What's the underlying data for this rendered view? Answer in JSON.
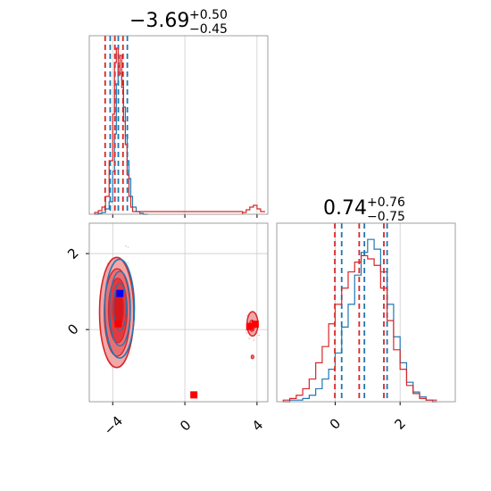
{
  "chart_data": [
    {
      "panel": "marginal-x",
      "type": "histogram",
      "title": {
        "main": "−3.69",
        "sup": "+0.50",
        "sub": "−0.45"
      },
      "xlim": [
        -5.3,
        4.6
      ],
      "series": [
        {
          "color": "#1f77b4",
          "bins": [
            [
              -5.0,
              0
            ],
            [
              -4.8,
              1
            ],
            [
              -4.6,
              2
            ],
            [
              -4.4,
              6
            ],
            [
              -4.2,
              14
            ],
            [
              -4.0,
              48
            ],
            [
              -3.9,
              90
            ],
            [
              -3.8,
              146
            ],
            [
              -3.7,
              166
            ],
            [
              -3.6,
              158
            ],
            [
              -3.5,
              150
            ],
            [
              -3.4,
              120
            ],
            [
              -3.3,
              88
            ],
            [
              -3.2,
              60
            ],
            [
              -3.1,
              40
            ],
            [
              -3.0,
              20
            ],
            [
              -2.9,
              8
            ],
            [
              -2.7,
              3
            ],
            [
              -2.5,
              1
            ],
            [
              -2.3,
              0
            ]
          ],
          "quantiles": [
            -4.14,
            -3.69,
            -3.19
          ]
        },
        {
          "color": "#d62728",
          "bins": [
            [
              -5.0,
              2
            ],
            [
              -4.8,
              4
            ],
            [
              -4.6,
              8
            ],
            [
              -4.4,
              20
            ],
            [
              -4.2,
              60
            ],
            [
              -4.0,
              112
            ],
            [
              -3.9,
              170
            ],
            [
              -3.8,
              186
            ],
            [
              -3.7,
              156
            ],
            [
              -3.6,
              178
            ],
            [
              -3.5,
              142
            ],
            [
              -3.4,
              104
            ],
            [
              -3.3,
              78
            ],
            [
              -3.2,
              44
            ],
            [
              -3.1,
              20
            ],
            [
              -3.0,
              8
            ],
            [
              -2.9,
              3
            ],
            [
              3.2,
              2
            ],
            [
              3.4,
              5
            ],
            [
              3.6,
              8
            ],
            [
              3.8,
              10
            ],
            [
              4.0,
              6
            ],
            [
              4.2,
              3
            ]
          ],
          "quantiles": [
            -4.42,
            -3.88,
            -3.43
          ]
        }
      ],
      "ylim": [
        0,
        200
      ]
    },
    {
      "panel": "joint",
      "type": "contour",
      "xlim": [
        -5.3,
        4.6
      ],
      "ylim": [
        -1.9,
        2.8
      ],
      "xticks": [
        "−4",
        "0",
        "4"
      ],
      "yticks": [
        "2",
        "0"
      ],
      "xtick_values": [
        -4,
        0,
        4
      ],
      "ytick_values": [
        2,
        0
      ],
      "grid": true,
      "markers": [
        {
          "color": "#0000ff",
          "x": -3.6,
          "y": 0.95
        },
        {
          "color": "#ff0000",
          "x": -3.7,
          "y": 0.15
        },
        {
          "color": "#ff0000",
          "x": 0.5,
          "y": -1.72
        },
        {
          "color": "#ff0000",
          "x": 3.6,
          "y": 0.08
        },
        {
          "color": "#ff0000",
          "x": 3.9,
          "y": 0.14
        }
      ]
    },
    {
      "panel": "marginal-y",
      "type": "histogram",
      "title": {
        "main": "0.74",
        "sup": "+0.76",
        "sub": "−0.75"
      },
      "xlim": [
        -1.8,
        3.7
      ],
      "xticks": [
        "0",
        "2"
      ],
      "xtick_values": [
        0,
        2
      ],
      "series": [
        {
          "color": "#1f77b4",
          "bins": [
            [
              -1.6,
              0
            ],
            [
              -1.4,
              1
            ],
            [
              -1.2,
              1
            ],
            [
              -1.0,
              2
            ],
            [
              -0.8,
              4
            ],
            [
              -0.6,
              8
            ],
            [
              -0.4,
              14
            ],
            [
              -0.2,
              20
            ],
            [
              0.0,
              30
            ],
            [
              0.2,
              46
            ],
            [
              0.4,
              60
            ],
            [
              0.6,
              78
            ],
            [
              0.8,
              92
            ],
            [
              1.0,
              100
            ],
            [
              1.2,
              94
            ],
            [
              1.4,
              80
            ],
            [
              1.6,
              60
            ],
            [
              1.8,
              40
            ],
            [
              2.0,
              24
            ],
            [
              2.2,
              12
            ],
            [
              2.4,
              6
            ],
            [
              2.6,
              3
            ],
            [
              2.8,
              1
            ],
            [
              3.0,
              0
            ]
          ],
          "quantiles": [
            0.2,
            0.9,
            1.6
          ]
        },
        {
          "color": "#d62728",
          "bins": [
            [
              -1.6,
              1
            ],
            [
              -1.4,
              2
            ],
            [
              -1.2,
              4
            ],
            [
              -1.0,
              8
            ],
            [
              -0.8,
              14
            ],
            [
              -0.6,
              24
            ],
            [
              -0.4,
              34
            ],
            [
              -0.2,
              48
            ],
            [
              0.0,
              60
            ],
            [
              0.2,
              70
            ],
            [
              0.4,
              80
            ],
            [
              0.6,
              86
            ],
            [
              0.8,
              90
            ],
            [
              1.0,
              88
            ],
            [
              1.2,
              84
            ],
            [
              1.4,
              70
            ],
            [
              1.6,
              50
            ],
            [
              1.8,
              32
            ],
            [
              2.0,
              20
            ],
            [
              2.2,
              10
            ],
            [
              2.4,
              5
            ],
            [
              2.6,
              2
            ],
            [
              2.8,
              1
            ],
            [
              3.0,
              1
            ]
          ],
          "quantiles": [
            -0.01,
            0.74,
            1.5
          ]
        }
      ],
      "ylim": [
        0,
        110
      ]
    }
  ]
}
